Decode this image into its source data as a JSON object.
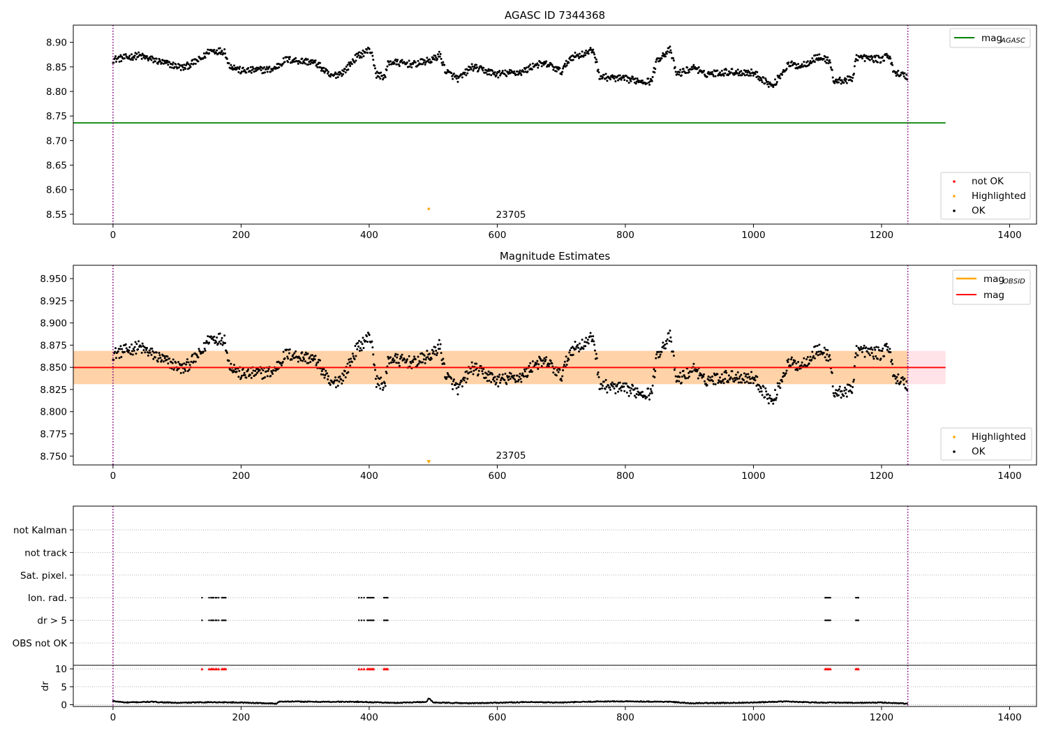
{
  "chart_data": [
    {
      "type": "scatter",
      "title": "AGASC ID 7344368",
      "xlim": [
        -62,
        1442
      ],
      "ylim": [
        8.53,
        8.935
      ],
      "xticks": [
        0,
        200,
        400,
        600,
        800,
        1000,
        1200,
        1400
      ],
      "yticks": [
        8.55,
        8.6,
        8.65,
        8.7,
        8.75,
        8.8,
        8.85,
        8.9
      ],
      "ytick_labels": [
        "8.55",
        "8.60",
        "8.65",
        "8.70",
        "8.75",
        "8.80",
        "8.85",
        "8.90"
      ],
      "vlines": [
        0,
        1241
      ],
      "vline_color": "#800080",
      "hline": {
        "y": 8.736,
        "x_end": 1300,
        "color": "#008000"
      },
      "highlighted_point": {
        "x": 493,
        "y": 8.561,
        "color": "#ffa500"
      },
      "annotation": {
        "text": "23705",
        "x": 593,
        "y": 8.537
      },
      "legend_upper": [
        {
          "label": "mag",
          "sub": "AGASC",
          "color": "#008000"
        }
      ],
      "legend_lower": [
        {
          "label": "not OK",
          "color": "#ff0000"
        },
        {
          "label": "Highlighted",
          "color": "#ffa500"
        },
        {
          "label": "OK",
          "color": "#000000"
        }
      ],
      "series": [
        {
          "anchors": [
            [
              0,
              8.865
            ],
            [
              40,
              8.873
            ],
            [
              80,
              8.858
            ],
            [
              110,
              8.848
            ],
            [
              140,
              8.868
            ],
            [
              150,
              8.883
            ],
            [
              175,
              8.882
            ],
            [
              180,
              8.855
            ],
            [
              200,
              8.842
            ],
            [
              250,
              8.845
            ],
            [
              270,
              8.865
            ],
            [
              310,
              8.86
            ],
            [
              320,
              8.855
            ],
            [
              340,
              8.83
            ],
            [
              360,
              8.84
            ],
            [
              380,
              8.87
            ],
            [
              400,
              8.885
            ],
            [
              405,
              8.878
            ],
            [
              410,
              8.835
            ],
            [
              425,
              8.83
            ],
            [
              430,
              8.86
            ],
            [
              470,
              8.855
            ],
            [
              500,
              8.865
            ],
            [
              510,
              8.875
            ],
            [
              520,
              8.84
            ],
            [
              540,
              8.825
            ],
            [
              560,
              8.85
            ],
            [
              600,
              8.835
            ],
            [
              640,
              8.84
            ],
            [
              660,
              8.855
            ],
            [
              680,
              8.855
            ],
            [
              700,
              8.84
            ],
            [
              715,
              8.87
            ],
            [
              740,
              8.878
            ],
            [
              750,
              8.885
            ],
            [
              760,
              8.83
            ],
            [
              800,
              8.825
            ],
            [
              840,
              8.82
            ],
            [
              850,
              8.865
            ],
            [
              870,
              8.885
            ],
            [
              880,
              8.835
            ],
            [
              910,
              8.85
            ],
            [
              920,
              8.835
            ],
            [
              960,
              8.84
            ],
            [
              1000,
              8.838
            ],
            [
              1020,
              8.82
            ],
            [
              1030,
              8.81
            ],
            [
              1040,
              8.83
            ],
            [
              1055,
              8.855
            ],
            [
              1075,
              8.852
            ],
            [
              1100,
              8.87
            ],
            [
              1120,
              8.862
            ],
            [
              1125,
              8.82
            ],
            [
              1155,
              8.825
            ],
            [
              1160,
              8.87
            ],
            [
              1200,
              8.865
            ],
            [
              1210,
              8.875
            ],
            [
              1220,
              8.84
            ],
            [
              1240,
              8.83
            ]
          ],
          "n": 1240,
          "noise": 0.007,
          "color": "#000000"
        }
      ]
    },
    {
      "type": "scatter",
      "title": "Magnitude Estimates",
      "xlim": [
        -62,
        1442
      ],
      "ylim": [
        8.74,
        8.965
      ],
      "xticks": [
        0,
        200,
        400,
        600,
        800,
        1000,
        1200,
        1400
      ],
      "yticks": [
        8.75,
        8.775,
        8.8,
        8.825,
        8.85,
        8.875,
        8.9,
        8.925,
        8.95
      ],
      "ytick_labels": [
        "8.750",
        "8.775",
        "8.800",
        "8.825",
        "8.850",
        "8.875",
        "8.900",
        "8.925",
        "8.950"
      ],
      "vlines": [
        0,
        1241
      ],
      "vline_color": "#800080",
      "hline": {
        "y": 8.8498,
        "x_end": 1300,
        "color": "#ff0000"
      },
      "band_outer": {
        "y0": 8.831,
        "y1": 8.8685,
        "color": "#ffc0cb"
      },
      "band_inner": {
        "y0": 8.831,
        "y1": 8.8685,
        "x_end": 1241,
        "color": "#ffa500"
      },
      "highlighted_point": {
        "x": 493,
        "y": 8.743,
        "color": "#ffa500",
        "marker": "triangle"
      },
      "annotation": {
        "text": "23705",
        "x": 593,
        "y": 8.742
      },
      "legend_upper": [
        {
          "label": "mag",
          "sub": "OBSID",
          "color": "#ffa500"
        },
        {
          "label": "mag",
          "sub": "",
          "color": "#ff0000"
        }
      ],
      "legend_lower": [
        {
          "label": "Highlighted",
          "color": "#ffa500"
        },
        {
          "label": "OK",
          "color": "#000000"
        }
      ],
      "series": [
        {
          "anchors": [
            [
              0,
              8.865
            ],
            [
              40,
              8.873
            ],
            [
              80,
              8.858
            ],
            [
              110,
              8.848
            ],
            [
              140,
              8.868
            ],
            [
              150,
              8.883
            ],
            [
              175,
              8.882
            ],
            [
              180,
              8.855
            ],
            [
              200,
              8.842
            ],
            [
              250,
              8.845
            ],
            [
              270,
              8.865
            ],
            [
              310,
              8.86
            ],
            [
              320,
              8.855
            ],
            [
              340,
              8.83
            ],
            [
              360,
              8.84
            ],
            [
              380,
              8.87
            ],
            [
              400,
              8.885
            ],
            [
              405,
              8.878
            ],
            [
              410,
              8.835
            ],
            [
              425,
              8.83
            ],
            [
              430,
              8.86
            ],
            [
              470,
              8.855
            ],
            [
              500,
              8.865
            ],
            [
              510,
              8.875
            ],
            [
              520,
              8.84
            ],
            [
              540,
              8.825
            ],
            [
              560,
              8.85
            ],
            [
              600,
              8.835
            ],
            [
              640,
              8.84
            ],
            [
              660,
              8.855
            ],
            [
              680,
              8.855
            ],
            [
              700,
              8.84
            ],
            [
              715,
              8.87
            ],
            [
              740,
              8.878
            ],
            [
              750,
              8.885
            ],
            [
              760,
              8.83
            ],
            [
              800,
              8.825
            ],
            [
              840,
              8.82
            ],
            [
              850,
              8.865
            ],
            [
              870,
              8.885
            ],
            [
              880,
              8.835
            ],
            [
              910,
              8.85
            ],
            [
              920,
              8.835
            ],
            [
              960,
              8.84
            ],
            [
              1000,
              8.838
            ],
            [
              1020,
              8.82
            ],
            [
              1030,
              8.81
            ],
            [
              1040,
              8.83
            ],
            [
              1055,
              8.855
            ],
            [
              1075,
              8.852
            ],
            [
              1100,
              8.87
            ],
            [
              1120,
              8.862
            ],
            [
              1125,
              8.82
            ],
            [
              1155,
              8.825
            ],
            [
              1160,
              8.87
            ],
            [
              1200,
              8.865
            ],
            [
              1210,
              8.875
            ],
            [
              1220,
              8.84
            ],
            [
              1240,
              8.83
            ]
          ],
          "n": 1240,
          "noise": 0.007,
          "color": "#000000"
        }
      ]
    },
    {
      "type": "scatter",
      "title": "",
      "xlim": [
        -62,
        1442
      ],
      "xticks": [
        0,
        200,
        400,
        600,
        800,
        1000,
        1200,
        1400
      ],
      "vlines": [
        0,
        1241
      ],
      "vline_color": "#800080",
      "categories": [
        "not Kalman",
        "not track",
        "Sat. pixel.",
        "Ion. rad.",
        "dr > 5",
        "OBS not OK"
      ],
      "flag_points": {
        "Ion. rad.": [
          139,
          150,
          153,
          155,
          157,
          160,
          162,
          165,
          170,
          172,
          174,
          176,
          384,
          388,
          392,
          397,
          399,
          401,
          403,
          405,
          407,
          423,
          425,
          427,
          429,
          1112,
          1114,
          1116,
          1118,
          1120,
          1160,
          1162,
          1164
        ],
        "dr > 5": [
          139,
          150,
          153,
          155,
          157,
          160,
          162,
          165,
          170,
          172,
          174,
          176,
          384,
          388,
          392,
          397,
          399,
          401,
          403,
          405,
          407,
          423,
          425,
          427,
          429,
          1112,
          1114,
          1116,
          1118,
          1120,
          1160,
          1162,
          1164
        ]
      },
      "dr_axis": {
        "ylabel": "dr",
        "ylim": [
          -0.5,
          11
        ],
        "yticks": [
          0,
          5,
          10
        ],
        "ytick_labels": [
          "0",
          "5",
          "10"
        ],
        "cap_value": 10,
        "cap_color": "#ff0000"
      },
      "dr_series": {
        "anchors": [
          [
            0,
            1.0
          ],
          [
            20,
            0.6
          ],
          [
            60,
            0.8
          ],
          [
            100,
            0.5
          ],
          [
            150,
            0.7
          ],
          [
            200,
            0.6
          ],
          [
            255,
            0.3
          ],
          [
            260,
            0.9
          ],
          [
            320,
            0.8
          ],
          [
            380,
            0.8
          ],
          [
            440,
            0.5
          ],
          [
            490,
            0.8
          ],
          [
            493,
            1.8
          ],
          [
            500,
            0.6
          ],
          [
            560,
            0.4
          ],
          [
            640,
            0.7
          ],
          [
            700,
            0.6
          ],
          [
            760,
            0.9
          ],
          [
            820,
            0.9
          ],
          [
            870,
            0.8
          ],
          [
            900,
            0.4
          ],
          [
            960,
            0.5
          ],
          [
            1000,
            0.6
          ],
          [
            1050,
            0.9
          ],
          [
            1100,
            0.6
          ],
          [
            1160,
            0.5
          ],
          [
            1200,
            0.6
          ],
          [
            1241,
            0.3
          ]
        ],
        "n": 1240,
        "noise": 0.12
      }
    }
  ]
}
